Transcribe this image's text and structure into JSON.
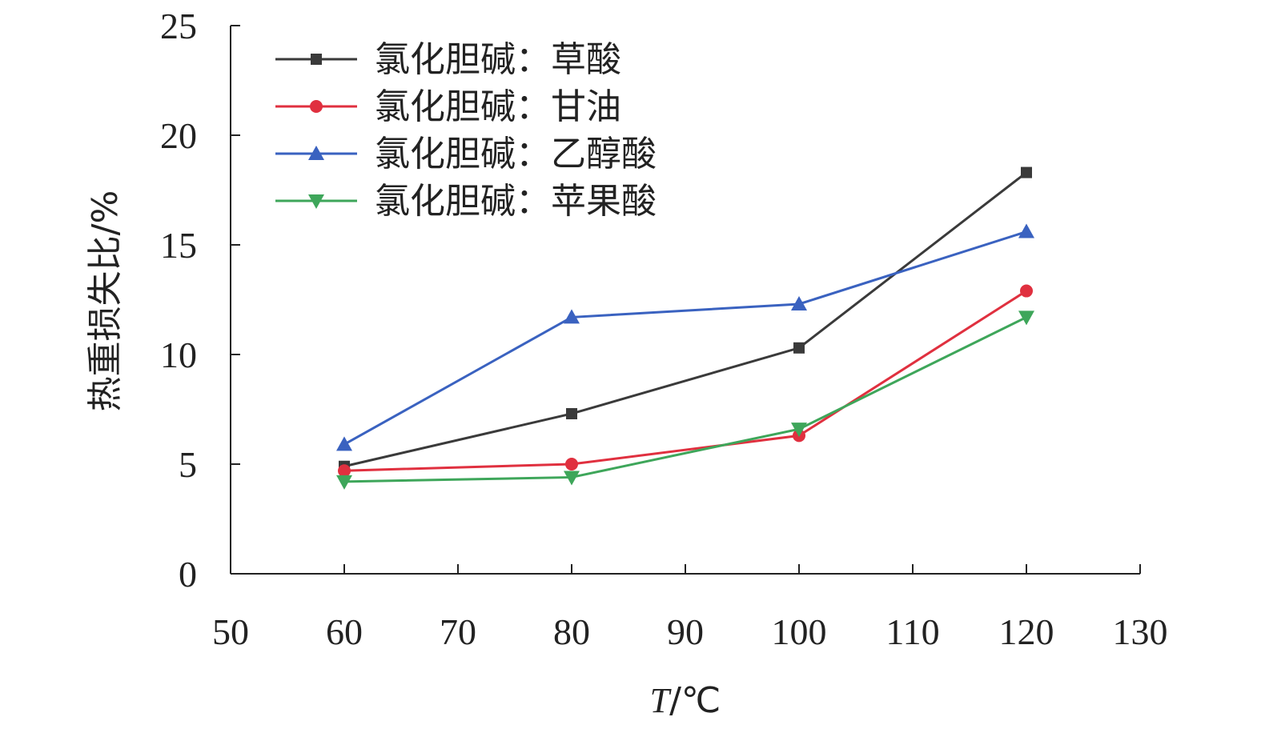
{
  "chart_data": {
    "type": "line",
    "xlabel_italic": "T",
    "xlabel_unit": "/℃",
    "ylabel": "热重损失比/%",
    "xlim": [
      50,
      130
    ],
    "ylim": [
      0,
      25
    ],
    "x_ticks": [
      50,
      60,
      70,
      80,
      90,
      100,
      110,
      120,
      130
    ],
    "y_ticks": [
      0,
      5,
      10,
      15,
      20,
      25
    ],
    "x": [
      60,
      80,
      100,
      120
    ],
    "legend_position": "top-left",
    "grid": false,
    "series": [
      {
        "name": "氯化胆碱：草酸",
        "color": "#3a3a3a",
        "marker": "square",
        "values": [
          4.9,
          7.3,
          10.3,
          18.3
        ]
      },
      {
        "name": "氯化胆碱：甘油",
        "color": "#e0303f",
        "marker": "circle",
        "values": [
          4.7,
          5.0,
          6.3,
          12.9
        ]
      },
      {
        "name": "氯化胆碱：乙醇酸",
        "color": "#3a62c0",
        "marker": "triangle-up",
        "values": [
          5.9,
          11.7,
          12.3,
          15.6
        ]
      },
      {
        "name": "氯化胆碱：苹果酸",
        "color": "#3ea65a",
        "marker": "triangle-down",
        "values": [
          4.2,
          4.4,
          6.6,
          11.7
        ]
      }
    ]
  }
}
